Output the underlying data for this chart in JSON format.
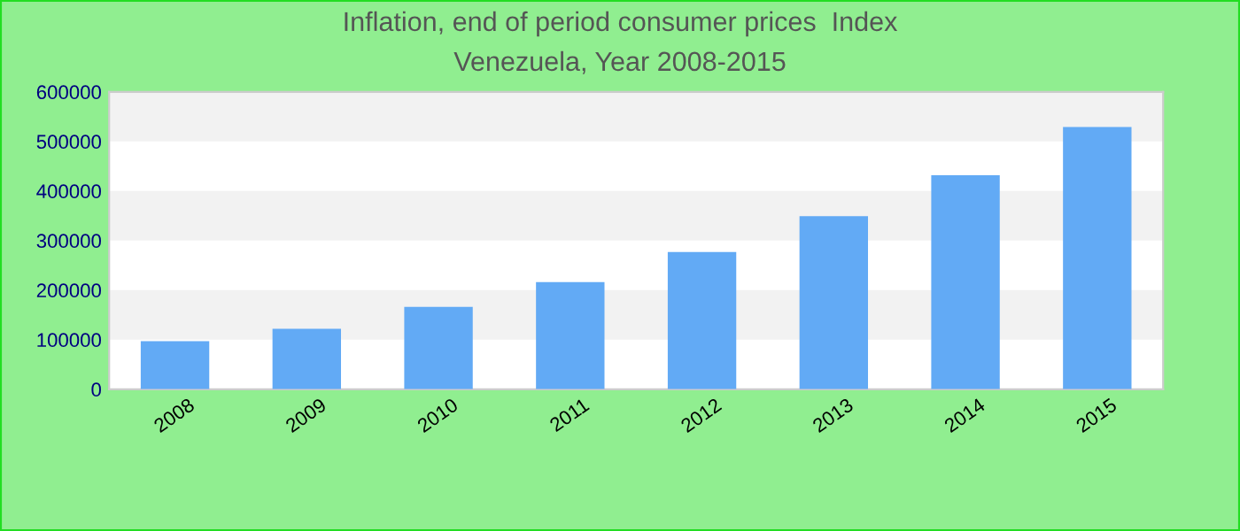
{
  "chart_data": {
    "type": "bar",
    "title": "Inflation, end of period consumer prices  Index",
    "subtitle": "Venezuela, Year 2008-2015",
    "categories": [
      "2008",
      "2009",
      "2010",
      "2011",
      "2012",
      "2013",
      "2014",
      "2015"
    ],
    "values": [
      97000,
      122000,
      166000,
      216000,
      277000,
      349000,
      432000,
      529000
    ],
    "color": "#62aaf5",
    "ylim": [
      0,
      600000
    ],
    "yticks": [
      0,
      100000,
      200000,
      300000,
      400000,
      500000,
      600000
    ],
    "bands": [
      {
        "axis": "y",
        "from": 100000,
        "to": 200000,
        "color": "#f2f2f2"
      },
      {
        "axis": "y",
        "from": 300000,
        "to": 400000,
        "color": "#f2f2f2"
      },
      {
        "axis": "y",
        "from": 500000,
        "to": 600000,
        "color": "#f2f2f2"
      }
    ]
  }
}
